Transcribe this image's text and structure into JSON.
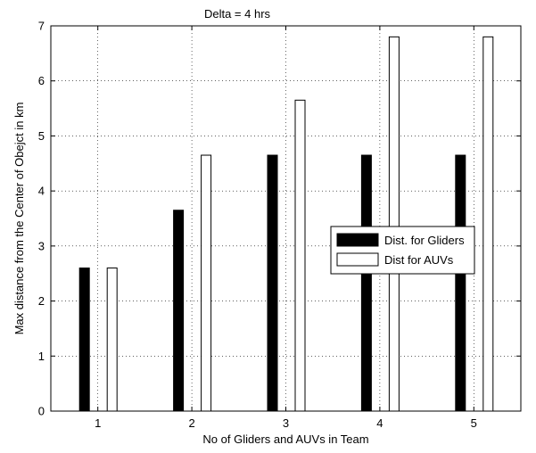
{
  "chart_data": {
    "type": "bar",
    "title": "Delta = 4 hrs",
    "xlabel": "No of Gliders and AUVs in Team",
    "ylabel": "Max distance from the Center of Obejct in km",
    "categories": [
      "1",
      "2",
      "3",
      "4",
      "5"
    ],
    "ylim": [
      0,
      7
    ],
    "yticks": [
      "0",
      "1",
      "2",
      "3",
      "4",
      "5",
      "6",
      "7"
    ],
    "grid": true,
    "legend_position": "center-right",
    "series": [
      {
        "name": "Dist. for Gliders",
        "values": [
          2.6,
          3.65,
          4.65,
          4.65,
          4.65
        ],
        "color": "#000000"
      },
      {
        "name": "Dist for AUVs",
        "values": [
          2.6,
          4.65,
          5.65,
          6.8,
          6.8
        ],
        "color": "#ffffff"
      }
    ]
  }
}
